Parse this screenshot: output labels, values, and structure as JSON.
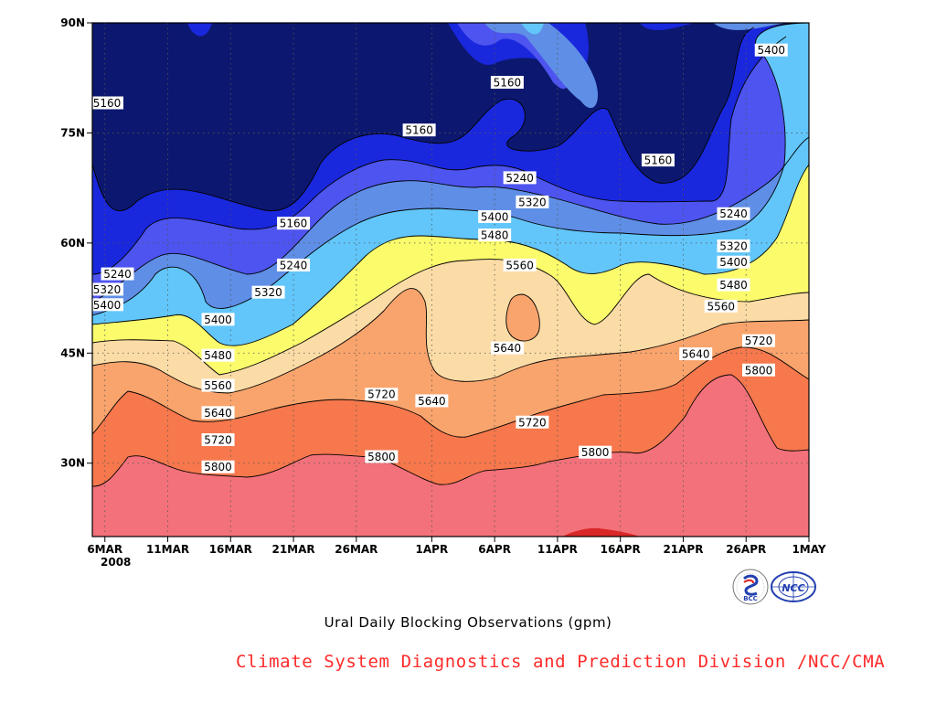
{
  "chart_data": {
    "type": "heatmap",
    "subtype": "filled-contour (latitude-time)",
    "title": "Ural Daily Blocking Observations (gpm)",
    "xlabel": "",
    "ylabel": "",
    "x_ticks": [
      "6MAR",
      "11MAR",
      "16MAR",
      "21MAR",
      "26MAR",
      "1APR",
      "6APR",
      "11APR",
      "16APR",
      "21APR",
      "26APR",
      "1MAY"
    ],
    "x_year_label": "2008",
    "y_ticks": [
      "30N",
      "45N",
      "60N",
      "75N",
      "90N"
    ],
    "ylim": [
      20,
      90
    ],
    "xlim": [
      "2008-03-05",
      "2008-05-01"
    ],
    "grid": true,
    "levels": [
      5160,
      5240,
      5320,
      5400,
      5480,
      5560,
      5640,
      5720,
      5800,
      5880
    ],
    "fill_colors": {
      "below_5160": "#0c186f",
      "5160_5240": "#1927dd",
      "5240_5320": "#4d54ef",
      "5320_5400": "#5f8ee6",
      "5400_5480": "#62c6fa",
      "5480_5560": "#fbfb6c",
      "5560_5640": "#fcdca6",
      "5640_5720": "#f9a46c",
      "5720_5800": "#f6784c",
      "5800_5880": "#f3717a",
      "above_5880": "#d92626"
    },
    "contour_labels": [
      {
        "value": "5160",
        "date": "2008-03-05",
        "lat": 79.1
      },
      {
        "value": "5240",
        "date": "2008-03-07",
        "lat": 55.8
      },
      {
        "value": "5320",
        "date": "2008-03-05",
        "lat": 53.7
      },
      {
        "value": "5400",
        "date": "2008-03-05",
        "lat": 51.6
      },
      {
        "value": "5160",
        "date": "2008-04-07",
        "lat": 81.9
      },
      {
        "value": "5160",
        "date": "2008-03-31",
        "lat": 75.4
      },
      {
        "value": "5160",
        "date": "2008-04-19",
        "lat": 71.3
      },
      {
        "value": "5400",
        "date": "2008-04-28",
        "lat": 86.3
      },
      {
        "value": "5240",
        "date": "2008-04-08",
        "lat": 68.9
      },
      {
        "value": "5320",
        "date": "2008-04-09",
        "lat": 65.6
      },
      {
        "value": "5400",
        "date": "2008-04-06",
        "lat": 63.6
      },
      {
        "value": "5480",
        "date": "2008-04-06",
        "lat": 61.1
      },
      {
        "value": "5560",
        "date": "2008-04-08",
        "lat": 57.0
      },
      {
        "value": "5160",
        "date": "2008-03-21",
        "lat": 62.7
      },
      {
        "value": "5240",
        "date": "2008-03-21",
        "lat": 57.0
      },
      {
        "value": "5320",
        "date": "2008-03-19",
        "lat": 53.3
      },
      {
        "value": "5400",
        "date": "2008-03-15",
        "lat": 49.6
      },
      {
        "value": "5480",
        "date": "2008-03-15",
        "lat": 44.7
      },
      {
        "value": "5560",
        "date": "2008-03-15",
        "lat": 40.6
      },
      {
        "value": "5640",
        "date": "2008-03-15",
        "lat": 36.9
      },
      {
        "value": "5720",
        "date": "2008-03-15",
        "lat": 33.2
      },
      {
        "value": "5800",
        "date": "2008-03-15",
        "lat": 29.5
      },
      {
        "value": "5720",
        "date": "2008-03-28",
        "lat": 39.4
      },
      {
        "value": "5800",
        "date": "2008-03-28",
        "lat": 30.9
      },
      {
        "value": "5640",
        "date": "2008-04-01",
        "lat": 38.5
      },
      {
        "value": "5640",
        "date": "2008-04-07",
        "lat": 45.7
      },
      {
        "value": "5720",
        "date": "2008-04-09",
        "lat": 35.6
      },
      {
        "value": "5800",
        "date": "2008-04-14",
        "lat": 31.5
      },
      {
        "value": "5640",
        "date": "2008-04-22",
        "lat": 44.9
      },
      {
        "value": "5560",
        "date": "2008-04-24",
        "lat": 51.4
      },
      {
        "value": "5480",
        "date": "2008-04-25",
        "lat": 54.3
      },
      {
        "value": "5400",
        "date": "2008-04-25",
        "lat": 57.4
      },
      {
        "value": "5320",
        "date": "2008-04-25",
        "lat": 59.6
      },
      {
        "value": "5240",
        "date": "2008-04-25",
        "lat": 64.0
      },
      {
        "value": "5720",
        "date": "2008-04-27",
        "lat": 46.7
      },
      {
        "value": "5800",
        "date": "2008-04-27",
        "lat": 42.7
      }
    ]
  },
  "footer": {
    "credit": "Climate System Diagnostics and Prediction Division /NCC/CMA",
    "logo_bcc_text": "BCC",
    "logo_ncc_text": "NCC"
  },
  "colors": {
    "credit_text": "#ff2a2a"
  }
}
